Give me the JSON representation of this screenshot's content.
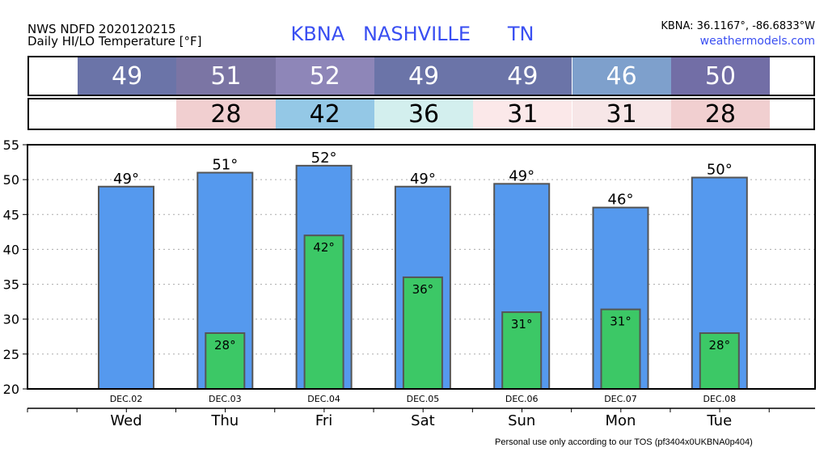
{
  "header": {
    "title_line1": "NWS NDFD 2020120215",
    "title_line2": "Daily HI/LO Temperature [°F]",
    "station": "KBNA   NASHVILLE      TN",
    "coords": "KBNA: 36.1167°, -86.6833°W",
    "site": "weathermodels.com"
  },
  "hi_strip": [
    {
      "label": "49",
      "color": "#6b74a8"
    },
    {
      "label": "51",
      "color": "#7b75a4"
    },
    {
      "label": "52",
      "color": "#8e86b8"
    },
    {
      "label": "49",
      "color": "#6b74a8"
    },
    {
      "label": "49",
      "color": "#6b74a8"
    },
    {
      "label": "46",
      "color": "#7ea0cc"
    },
    {
      "label": "50",
      "color": "#726ea6"
    }
  ],
  "lo_strip": [
    {
      "label": "28",
      "color": "#f1cfd0"
    },
    {
      "label": "42",
      "color": "#94c8e6"
    },
    {
      "label": "36",
      "color": "#d3efee"
    },
    {
      "label": "31",
      "color": "#fbe8e9"
    },
    {
      "label": "31",
      "color": "#f7e6e7"
    },
    {
      "label": "28",
      "color": "#f1cfd0"
    }
  ],
  "chart_data": {
    "type": "bar",
    "categories": [
      "Wed",
      "Thu",
      "Fri",
      "Sat",
      "Sun",
      "Mon",
      "Tue"
    ],
    "dates": [
      "DEC.02",
      "DEC.03",
      "DEC.04",
      "DEC.05",
      "DEC.06",
      "DEC.07",
      "DEC.08"
    ],
    "series": [
      {
        "values": [
          49,
          51,
          52,
          49,
          49.4,
          46,
          50.3
        ],
        "labels": [
          "49°",
          "51°",
          "52°",
          "49°",
          "49°",
          "46°",
          "50°"
        ],
        "color": "#5599ee"
      },
      {
        "values": [
          null,
          28,
          42,
          36,
          31,
          31.4,
          28
        ],
        "labels": [
          "",
          "28°",
          "42°",
          "36°",
          "31°",
          "31°",
          "28°"
        ],
        "color": "#3cc866"
      }
    ],
    "ylim": [
      20,
      55
    ],
    "yticks": [
      20,
      25,
      30,
      35,
      40,
      45,
      50,
      55
    ],
    "grid": true
  },
  "footer": "Personal use only according to our TOS (pf3404x0UKBNA0p404)"
}
